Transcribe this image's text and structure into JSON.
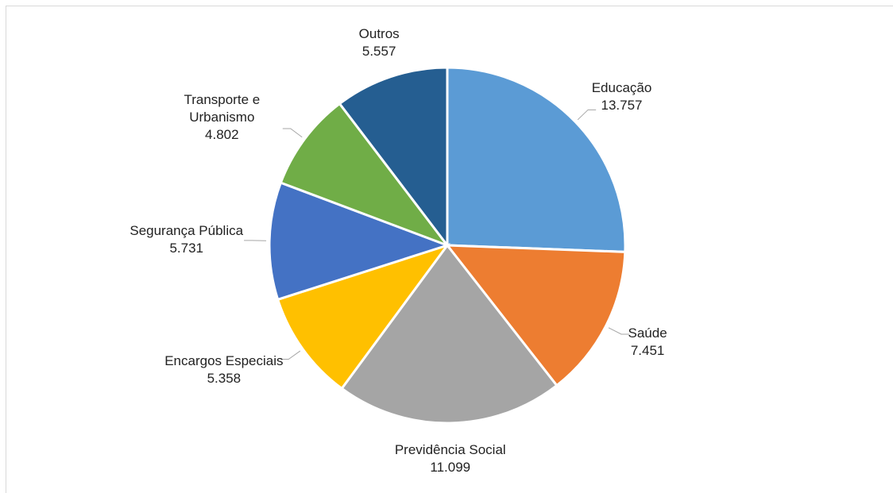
{
  "chart_data": {
    "type": "pie",
    "categories": [
      "Educação",
      "Saúde",
      "Previdência Social",
      "Encargos Especiais",
      "Segurança Pública",
      "Transporte e Urbanismo",
      "Outros"
    ],
    "values": [
      13.757,
      7.451,
      11.099,
      5.358,
      5.731,
      4.802,
      5.557
    ],
    "colors": [
      "#5b9bd5",
      "#ed7d31",
      "#a5a5a5",
      "#ffc000",
      "#4472c4",
      "#70ad47",
      "#255e91"
    ]
  }
}
